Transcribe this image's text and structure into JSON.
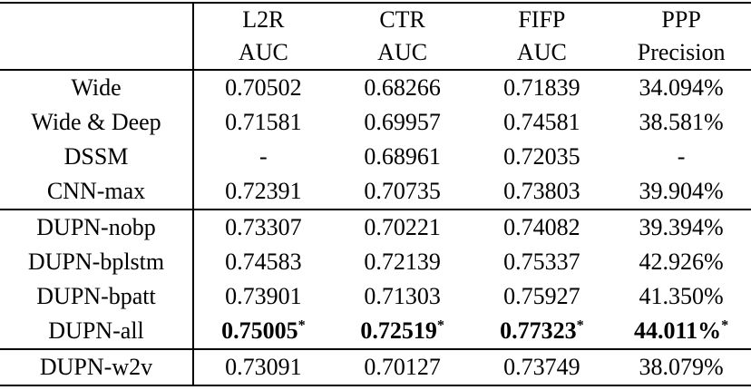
{
  "table": {
    "columns": [
      {
        "line1": "L2R",
        "line2": "AUC"
      },
      {
        "line1": "CTR",
        "line2": "AUC"
      },
      {
        "line1": "FIFP",
        "line2": "AUC"
      },
      {
        "line1": "PPP",
        "line2": "Precision"
      }
    ],
    "rows": [
      {
        "label": "Wide",
        "values": [
          "0.70502",
          "0.68266",
          "0.71839",
          "34.094%"
        ]
      },
      {
        "label": "Wide & Deep",
        "values": [
          "0.71581",
          "0.69957",
          "0.74581",
          "38.581%"
        ]
      },
      {
        "label": "DSSM",
        "values": [
          "-",
          "0.68961",
          "0.72035",
          "-"
        ]
      },
      {
        "label": "CNN-max",
        "values": [
          "0.72391",
          "0.70735",
          "0.73803",
          "39.904%"
        ]
      },
      {
        "label": "DUPN-nobp",
        "values": [
          "0.73307",
          "0.70221",
          "0.74082",
          "39.394%"
        ]
      },
      {
        "label": "DUPN-bplstm",
        "values": [
          "0.74583",
          "0.72139",
          "0.75337",
          "42.926%"
        ]
      },
      {
        "label": "DUPN-bpatt",
        "values": [
          "0.73901",
          "0.71303",
          "0.75927",
          "41.350%"
        ]
      },
      {
        "label": "DUPN-all",
        "values": [
          "0.75005",
          "0.72519",
          "0.77323",
          "44.011%"
        ],
        "star": "*",
        "bold": true
      },
      {
        "label": "DUPN-w2v",
        "values": [
          "0.73091",
          "0.70127",
          "0.73749",
          "38.079%"
        ]
      }
    ],
    "colors": {
      "text": "#000000",
      "rule": "#000000",
      "background": "#ffffff"
    }
  }
}
